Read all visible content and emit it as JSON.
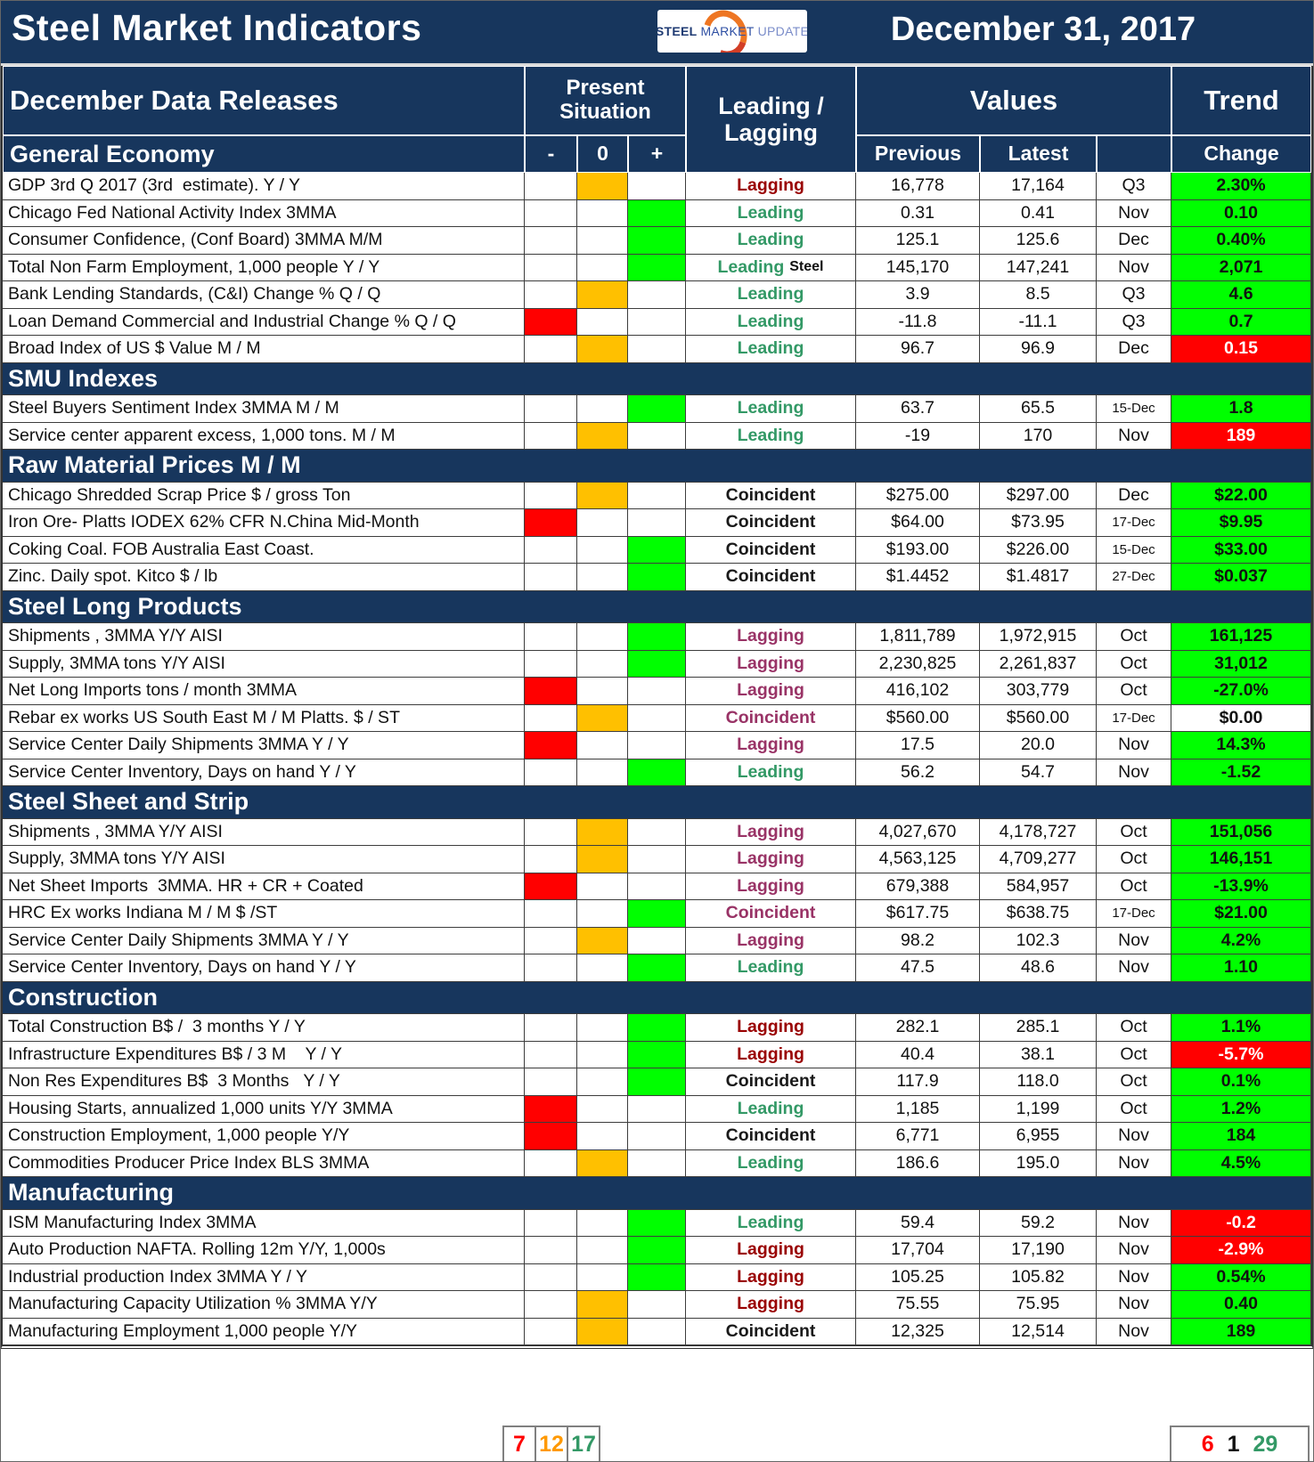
{
  "header": {
    "title": "Steel Market Indicators",
    "date": "December 31, 2017",
    "logo": {
      "part1": "STEEL",
      "part2": "MARKET",
      "part3": "UPDATE"
    }
  },
  "table_head": {
    "releases_label": "December Data Releases",
    "present_situation": "Present Situation",
    "minus": "-",
    "zero": "0",
    "plus": "+",
    "leading_lagging": "Leading / Lagging",
    "values": "Values",
    "previous": "Previous",
    "latest": "Latest",
    "trend": "Trend",
    "change": "Change"
  },
  "colors": {
    "navy": "#17365D",
    "negative": "#FF0000",
    "neutral": "#FFC000",
    "positive": "#00FF00",
    "leading_green": "#339966",
    "dark_red": "#990000",
    "steel_purple": "#993366",
    "black": "#1a1a1a",
    "summary_orange": "#FF9900",
    "summary_green": "#339966",
    "summary_red": "#FF0000"
  },
  "sections": [
    {
      "name": "General Economy",
      "rows": [
        {
          "label": "GDP 3rd Q 2017 (3rd  estimate). Y / Y",
          "situation": "0",
          "class": "Lagging",
          "class_color": "dark_red",
          "previous": "16,778",
          "latest": "17,164",
          "period": "Q3",
          "change": "2.30%",
          "change_bg": "green"
        },
        {
          "label": "Chicago Fed National Activity Index 3MMA",
          "situation": "+",
          "class": "Leading",
          "class_color": "leading_green",
          "previous": "0.31",
          "latest": "0.41",
          "period": "Nov",
          "change": "0.10",
          "change_bg": "green"
        },
        {
          "label": "Consumer Confidence, (Conf Board) 3MMA M/M",
          "situation": "+",
          "class": "Leading",
          "class_color": "leading_green",
          "previous": "125.1",
          "latest": "125.6",
          "period": "Dec",
          "change": "0.40%",
          "change_bg": "green"
        },
        {
          "label": "Total Non Farm Employment, 1,000 people Y / Y",
          "situation": "+",
          "class": "Leading",
          "class_color": "leading_green",
          "class_suffix": "Steel",
          "previous": "145,170",
          "latest": "147,241",
          "period": "Nov",
          "change": "2,071",
          "change_bg": "green"
        },
        {
          "label": "Bank Lending Standards, (C&I) Change % Q / Q",
          "situation": "0",
          "class": "Leading",
          "class_color": "leading_green",
          "previous": "3.9",
          "latest": "8.5",
          "period": "Q3",
          "change": "4.6",
          "change_bg": "green"
        },
        {
          "label": "Loan Demand Commercial and Industrial Change % Q / Q",
          "situation": "-",
          "class": "Leading",
          "class_color": "leading_green",
          "previous": "-11.8",
          "latest": "-11.1",
          "period": "Q3",
          "change": "0.7",
          "change_bg": "green"
        },
        {
          "label": "Broad Index of US $ Value M / M",
          "situation": "0",
          "class": "Leading",
          "class_color": "leading_green",
          "previous": "96.7",
          "latest": "96.9",
          "period": "Dec",
          "change": "0.15",
          "change_bg": "red"
        }
      ]
    },
    {
      "name": "SMU Indexes",
      "rows": [
        {
          "label": "Steel Buyers Sentiment Index 3MMA M / M",
          "situation": "+",
          "class": "Leading",
          "class_color": "leading_green",
          "previous": "63.7",
          "latest": "65.5",
          "period": "15-Dec",
          "change": "1.8",
          "change_bg": "green"
        },
        {
          "label": "Service center apparent excess, 1,000 tons. M / M",
          "situation": "0",
          "class": "Leading",
          "class_color": "leading_green",
          "previous": "-19",
          "latest": "170",
          "period": "Nov",
          "change": "189",
          "change_bg": "red"
        }
      ]
    },
    {
      "name": "Raw Material Prices M / M",
      "rows": [
        {
          "label": "Chicago Shredded Scrap Price $ / gross Ton",
          "situation": "0",
          "class": "Coincident",
          "class_color": "black",
          "previous": "$ 275.00",
          "latest": "$ 297.00",
          "period": "Dec",
          "change": "$22.00",
          "change_bg": "green"
        },
        {
          "label": "Iron Ore- Platts IODEX 62% CFR N.China Mid-Month",
          "situation": "-",
          "class": "Coincident",
          "class_color": "black",
          "previous": "$ 64.00",
          "latest": "$ 73.95",
          "period": "17-Dec",
          "change": "$9.95",
          "change_bg": "green"
        },
        {
          "label": "Coking Coal. FOB Australia East Coast.",
          "situation": "+",
          "class": "Coincident",
          "class_color": "black",
          "previous": "$ 193.00",
          "latest": "$ 226.00",
          "period": "15-Dec",
          "change": "$33.00",
          "change_bg": "green"
        },
        {
          "label": "Zinc. Daily spot. Kitco $ / lb",
          "situation": "+",
          "class": "Coincident",
          "class_color": "black",
          "previous": "$ 1.4452",
          "latest": "$ 1.4817",
          "period": "27-Dec",
          "change": "$0.037",
          "change_bg": "green"
        }
      ]
    },
    {
      "name": "Steel Long Products",
      "rows": [
        {
          "label": "Shipments , 3MMA Y/Y AISI",
          "situation": "+",
          "class": "Lagging",
          "class_color": "steel_purple",
          "previous": "1,811,789",
          "latest": "1,972,915",
          "period": "Oct",
          "change": "161,125",
          "change_bg": "green"
        },
        {
          "label": "Supply, 3MMA tons Y/Y AISI",
          "situation": "+",
          "class": "Lagging",
          "class_color": "steel_purple",
          "previous": "2,230,825",
          "latest": "2,261,837",
          "period": "Oct",
          "change": "31,012",
          "change_bg": "green"
        },
        {
          "label": "Net Long Imports tons / month 3MMA",
          "situation": "-",
          "class": "Lagging",
          "class_color": "steel_purple",
          "previous": "416,102",
          "latest": "303,779",
          "period": "Oct",
          "change": "-27.0%",
          "change_bg": "green"
        },
        {
          "label": "Rebar ex works US South East M / M Platts. $ / ST",
          "situation": "0",
          "class": "Coincident",
          "class_color": "steel_purple",
          "previous": "$ 560.00",
          "latest": "$ 560.00",
          "period": "17-Dec",
          "change": "$0.00",
          "change_bg": "none"
        },
        {
          "label": "Service Center Daily Shipments 3MMA Y / Y",
          "situation": "-",
          "class": "Lagging",
          "class_color": "steel_purple",
          "previous": "17.5",
          "latest": "20.0",
          "period": "Nov",
          "change": "14.3%",
          "change_bg": "green"
        },
        {
          "label": "Service Center Inventory, Days on hand Y / Y",
          "situation": "+",
          "class": "Leading",
          "class_color": "leading_green",
          "previous": "56.2",
          "latest": "54.7",
          "period": "Nov",
          "change": "-1.52",
          "change_bg": "green"
        }
      ]
    },
    {
      "name": "Steel Sheet and Strip",
      "rows": [
        {
          "label": "Shipments , 3MMA Y/Y AISI",
          "situation": "0",
          "class": "Lagging",
          "class_color": "steel_purple",
          "previous": "4,027,670",
          "latest": "4,178,727",
          "period": "Oct",
          "change": "151,056",
          "change_bg": "green"
        },
        {
          "label": "Supply, 3MMA tons Y/Y AISI",
          "situation": "0",
          "class": "Lagging",
          "class_color": "steel_purple",
          "previous": "4,563,125",
          "latest": "4,709,277",
          "period": "Oct",
          "change": "146,151",
          "change_bg": "green"
        },
        {
          "label": "Net Sheet Imports  3MMA. HR + CR + Coated",
          "situation": "-",
          "class": "Lagging",
          "class_color": "steel_purple",
          "previous": "679,388",
          "latest": "584,957",
          "period": "Oct",
          "change": "-13.9%",
          "change_bg": "green"
        },
        {
          "label": "HRC Ex works Indiana M / M $ /ST",
          "situation": "+",
          "class": "Coincident",
          "class_color": "steel_purple",
          "previous": "$ 617.75",
          "latest": "$ 638.75",
          "period": "17-Dec",
          "change": "$21.00",
          "change_bg": "green"
        },
        {
          "label": "Service Center Daily Shipments 3MMA Y / Y",
          "situation": "0",
          "class": "Lagging",
          "class_color": "steel_purple",
          "previous": "98.2",
          "latest": "102.3",
          "period": "Nov",
          "change": "4.2%",
          "change_bg": "green"
        },
        {
          "label": "Service Center Inventory, Days on hand Y / Y",
          "situation": "+",
          "class": "Leading",
          "class_color": "leading_green",
          "previous": "47.5",
          "latest": "48.6",
          "period": "Nov",
          "change": "1.10",
          "change_bg": "green"
        }
      ]
    },
    {
      "name": "Construction",
      "rows": [
        {
          "label": "Total Construction B$ /  3 months Y / Y",
          "situation": "+",
          "class": "Lagging",
          "class_color": "dark_red",
          "previous": "282.1",
          "latest": "285.1",
          "period": "Oct",
          "change": "1.1%",
          "change_bg": "green"
        },
        {
          "label": "Infrastructure Expenditures B$ / 3 M    Y / Y",
          "situation": "+",
          "class": "Lagging",
          "class_color": "dark_red",
          "previous": "40.4",
          "latest": "38.1",
          "period": "Oct",
          "change": "-5.7%",
          "change_bg": "red"
        },
        {
          "label": "Non Res Expenditures B$  3 Months   Y / Y",
          "situation": "+",
          "class": "Coincident",
          "class_color": "black",
          "previous": "117.9",
          "latest": "118.0",
          "period": "Oct",
          "change": "0.1%",
          "change_bg": "green"
        },
        {
          "label": "Housing Starts, annualized 1,000 units Y/Y 3MMA",
          "situation": "-",
          "class": "Leading",
          "class_color": "leading_green",
          "previous": "1,185",
          "latest": "1,199",
          "period": "Oct",
          "change": "1.2%",
          "change_bg": "green"
        },
        {
          "label": "Construction Employment, 1,000 people Y/Y",
          "situation": "-",
          "class": "Coincident",
          "class_color": "black",
          "previous": "6,771",
          "latest": "6,955",
          "period": "Nov",
          "change": "184",
          "change_bg": "green"
        },
        {
          "label": "Commodities Producer Price Index BLS 3MMA",
          "situation": "0",
          "class": "Leading",
          "class_color": "leading_green",
          "previous": "186.6",
          "latest": "195.0",
          "period": "Nov",
          "change": "4.5%",
          "change_bg": "green"
        }
      ]
    },
    {
      "name": "Manufacturing",
      "rows": [
        {
          "label": "ISM Manufacturing Index 3MMA",
          "situation": "+",
          "class": "Leading",
          "class_color": "leading_green",
          "previous": "59.4",
          "latest": "59.2",
          "period": "Nov",
          "change": "-0.2",
          "change_bg": "red"
        },
        {
          "label": "Auto Production NAFTA. Rolling 12m Y/Y, 1,000s",
          "situation": "+",
          "class": "Lagging",
          "class_color": "dark_red",
          "previous": "17,704",
          "latest": "17,190",
          "period": "Nov",
          "change": "-2.9%",
          "change_bg": "red"
        },
        {
          "label": "Industrial production Index 3MMA Y / Y",
          "situation": "+",
          "class": "Lagging",
          "class_color": "dark_red",
          "previous": "105.25",
          "latest": "105.82",
          "period": "Nov",
          "change": "0.54%",
          "change_bg": "green"
        },
        {
          "label": "Manufacturing Capacity Utilization % 3MMA Y/Y",
          "situation": "0",
          "class": "Lagging",
          "class_color": "dark_red",
          "previous": "75.55",
          "latest": "75.95",
          "period": "Nov",
          "change": "0.40",
          "change_bg": "green"
        },
        {
          "label": "Manufacturing Employment 1,000 people Y/Y",
          "situation": "0",
          "class": "Coincident",
          "class_color": "black",
          "previous": "12,325",
          "latest": "12,514",
          "period": "Nov",
          "change": "189",
          "change_bg": "green"
        }
      ]
    }
  ],
  "summary": {
    "negative": "7",
    "neutral": "12",
    "positive": "17",
    "down": "6",
    "flat": "1",
    "up": "29"
  }
}
